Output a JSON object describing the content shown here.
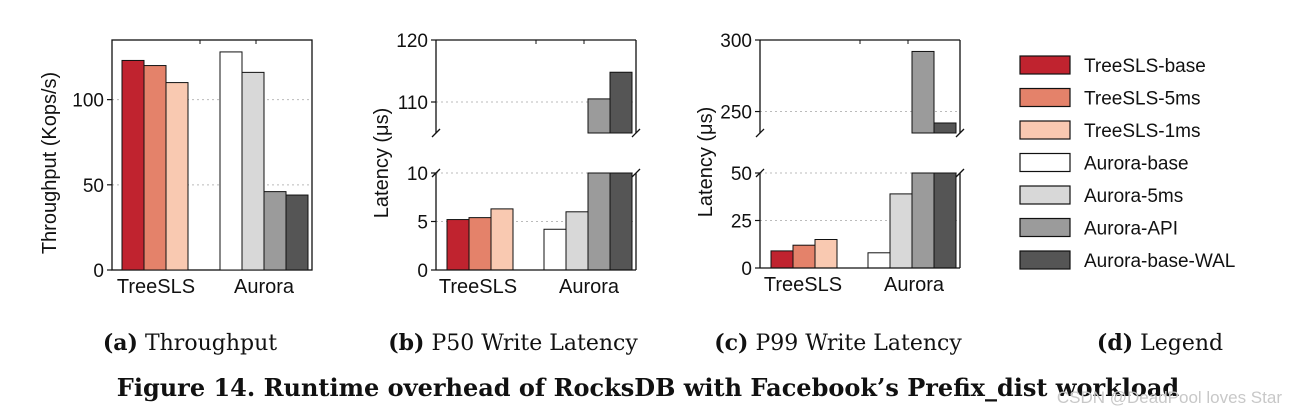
{
  "colors": {
    "TreeSLS-base": "#c0232f",
    "TreeSLS-5ms": "#e4826a",
    "TreeSLS-1ms": "#f9c9b1",
    "Aurora-base": "#ffffff",
    "Aurora-5ms": "#d8d8d8",
    "Aurora-API": "#9b9b9b",
    "Aurora-base-WAL": "#555555"
  },
  "legend": {
    "items": [
      "TreeSLS-base",
      "TreeSLS-5ms",
      "TreeSLS-1ms",
      "Aurora-base",
      "Aurora-5ms",
      "Aurora-API",
      "Aurora-base-WAL"
    ]
  },
  "captions": {
    "a_label": "(a)",
    "a_text": "Throughput",
    "b_label": "(b)",
    "b_text": "P50 Write Latency",
    "c_label": "(c)",
    "c_text": "P99 Write Latency",
    "d_label": "(d)",
    "d_text": "Legend"
  },
  "figure_title": "Figure 14. Runtime overhead of RocksDB with Facebook’s Prefix_dist workload",
  "watermark": "CSDN @DeadPool loves Star",
  "chart_data": [
    {
      "type": "bar",
      "title": "",
      "ylabel": "Throughput (Kops/s)",
      "xlabel": "",
      "categories": [
        "TreeSLS",
        "Aurora"
      ],
      "ylim": [
        0,
        135
      ],
      "yticks": [
        0,
        50,
        100
      ],
      "grid": true,
      "series": [
        {
          "name": "TreeSLS-base",
          "values": [
            123,
            null
          ]
        },
        {
          "name": "TreeSLS-5ms",
          "values": [
            120,
            null
          ]
        },
        {
          "name": "TreeSLS-1ms",
          "values": [
            110,
            null
          ]
        },
        {
          "name": "Aurora-base",
          "values": [
            null,
            128
          ]
        },
        {
          "name": "Aurora-5ms",
          "values": [
            null,
            116
          ]
        },
        {
          "name": "Aurora-API",
          "values": [
            null,
            46
          ]
        },
        {
          "name": "Aurora-base-WAL",
          "values": [
            null,
            44
          ]
        }
      ]
    },
    {
      "type": "bar",
      "title": "",
      "ylabel": "Latency (μs)",
      "xlabel": "",
      "categories": [
        "TreeSLS",
        "Aurora"
      ],
      "broken_axis": {
        "lower": [
          0,
          10
        ],
        "upper": [
          105,
          120
        ]
      },
      "yticks_lower": [
        0,
        5,
        10
      ],
      "yticks_upper": [
        110,
        120
      ],
      "grid": true,
      "series": [
        {
          "name": "TreeSLS-base",
          "values": [
            5.2,
            null
          ]
        },
        {
          "name": "TreeSLS-5ms",
          "values": [
            5.4,
            null
          ]
        },
        {
          "name": "TreeSLS-1ms",
          "values": [
            6.3,
            null
          ]
        },
        {
          "name": "Aurora-base",
          "values": [
            null,
            4.2
          ]
        },
        {
          "name": "Aurora-5ms",
          "values": [
            null,
            6.0
          ]
        },
        {
          "name": "Aurora-API",
          "values": [
            null,
            110.5
          ]
        },
        {
          "name": "Aurora-base-WAL",
          "values": [
            null,
            114.8
          ]
        }
      ]
    },
    {
      "type": "bar",
      "title": "",
      "ylabel": "Latency (μs)",
      "xlabel": "",
      "categories": [
        "TreeSLS",
        "Aurora"
      ],
      "broken_axis": {
        "lower": [
          0,
          50
        ],
        "upper": [
          235,
          300
        ]
      },
      "yticks_lower": [
        0,
        25,
        50
      ],
      "yticks_upper": [
        250,
        300
      ],
      "grid": true,
      "series": [
        {
          "name": "TreeSLS-base",
          "values": [
            9,
            null
          ]
        },
        {
          "name": "TreeSLS-5ms",
          "values": [
            12,
            null
          ]
        },
        {
          "name": "TreeSLS-1ms",
          "values": [
            15,
            null
          ]
        },
        {
          "name": "Aurora-base",
          "values": [
            null,
            8
          ]
        },
        {
          "name": "Aurora-5ms",
          "values": [
            null,
            39
          ]
        },
        {
          "name": "Aurora-API",
          "values": [
            null,
            292
          ]
        },
        {
          "name": "Aurora-base-WAL",
          "values": [
            null,
            242
          ]
        }
      ]
    }
  ]
}
